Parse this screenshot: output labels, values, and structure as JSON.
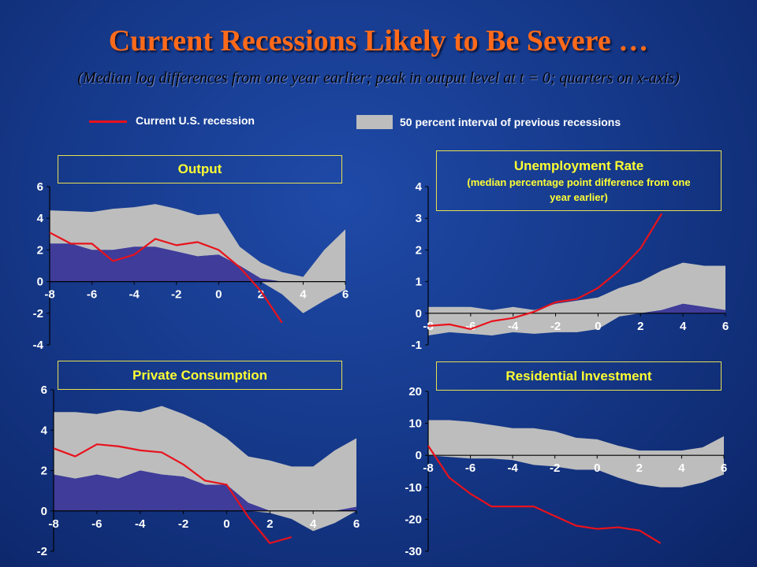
{
  "title": "Current Recessions Likely to Be Severe …",
  "subtitle": "(Median log differences from one year earlier; peak in output level at t = 0; quarters on x-axis)",
  "legend": {
    "line_label": "Current U.S. recession",
    "band_label": "50 percent interval of previous recessions"
  },
  "colors": {
    "background": "#163a8c",
    "title": "#ff6a1a",
    "band": "#bdbdbd",
    "lower_band": "#3f3c9a",
    "line": "#e8121c",
    "panel_label": "#ffff33"
  },
  "chart_data": [
    {
      "type": "area",
      "title": "Output",
      "xlim": [
        -8,
        6
      ],
      "ylim": [
        -4,
        6
      ],
      "xticks": [
        "-8",
        "-6",
        "-4",
        "-2",
        "0",
        "2",
        "4",
        "6"
      ],
      "yticks": [
        "-4",
        "-2",
        "0",
        "2",
        "4",
        "6"
      ],
      "band_x": [
        -8,
        -7,
        -6,
        -5,
        -4,
        -3,
        -2,
        -1,
        0,
        1,
        2,
        3,
        4,
        5,
        6
      ],
      "band_upper": [
        4.5,
        4.45,
        4.4,
        4.6,
        4.7,
        4.9,
        4.6,
        4.2,
        4.3,
        2.2,
        1.2,
        0.6,
        0.3,
        2.0,
        3.3
      ],
      "band_lower": [
        2.4,
        2.4,
        2.0,
        2.0,
        2.2,
        2.2,
        1.9,
        1.6,
        1.7,
        1.0,
        0.2,
        -0.8,
        -2.0,
        -1.2,
        -0.5
      ],
      "series": [
        {
          "name": "Current U.S. recession",
          "x": [
            -8,
            -7,
            -6,
            -5,
            -4,
            -3,
            -2,
            -1,
            0,
            1,
            2,
            3
          ],
          "values": [
            3.1,
            2.4,
            2.4,
            1.3,
            1.7,
            2.7,
            2.3,
            2.5,
            2.0,
            0.9,
            -0.6,
            -2.6
          ]
        }
      ]
    },
    {
      "type": "area",
      "title": "Unemployment Rate",
      "title_note": "(median percentage point difference from one year earlier)",
      "xlim": [
        -8,
        6
      ],
      "ylim": [
        -1,
        4
      ],
      "xticks": [
        "-8",
        "-6",
        "-4",
        "-2",
        "0",
        "2",
        "4",
        "6"
      ],
      "yticks": [
        "-1",
        "0",
        "1",
        "2",
        "3",
        "4"
      ],
      "band_x": [
        -8,
        -7,
        -6,
        -5,
        -4,
        -3,
        -2,
        -1,
        0,
        1,
        2,
        3,
        4,
        5,
        6
      ],
      "band_upper": [
        0.2,
        0.2,
        0.2,
        0.1,
        0.2,
        0.1,
        0.3,
        0.4,
        0.5,
        0.8,
        1.0,
        1.35,
        1.6,
        1.5,
        1.5
      ],
      "band_lower": [
        -0.7,
        -0.6,
        -0.65,
        -0.7,
        -0.6,
        -0.65,
        -0.6,
        -0.6,
        -0.5,
        -0.1,
        0.0,
        0.1,
        0.3,
        0.2,
        0.1
      ],
      "series": [
        {
          "name": "Current U.S. recession",
          "x": [
            -8,
            -7,
            -6,
            -5,
            -4,
            -3,
            -2,
            -1,
            0,
            1,
            2,
            3
          ],
          "values": [
            -0.4,
            -0.35,
            -0.5,
            -0.25,
            -0.15,
            0.05,
            0.35,
            0.45,
            0.8,
            1.35,
            2.05,
            3.15
          ]
        }
      ]
    },
    {
      "type": "area",
      "title": "Private Consumption",
      "xlim": [
        -8,
        6
      ],
      "ylim": [
        -2,
        6
      ],
      "xticks": [
        "-8",
        "-6",
        "-4",
        "-2",
        "0",
        "2",
        "4",
        "6"
      ],
      "yticks": [
        "-2",
        "0",
        "2",
        "4",
        "6"
      ],
      "band_x": [
        -8,
        -7,
        -6,
        -5,
        -4,
        -3,
        -2,
        -1,
        0,
        1,
        2,
        3,
        4,
        5,
        6
      ],
      "band_upper": [
        4.9,
        4.9,
        4.8,
        5.0,
        4.9,
        5.2,
        4.8,
        4.3,
        3.6,
        2.7,
        2.5,
        2.2,
        2.2,
        3.0,
        3.6
      ],
      "band_lower": [
        1.8,
        1.6,
        1.8,
        1.6,
        2.0,
        1.8,
        1.7,
        1.3,
        1.3,
        0.4,
        -0.1,
        -0.4,
        -1.0,
        -0.6,
        0.2
      ],
      "series": [
        {
          "name": "Current U.S. recession",
          "x": [
            -8,
            -7,
            -6,
            -5,
            -4,
            -3,
            -2,
            -1,
            0,
            1,
            2,
            3
          ],
          "values": [
            3.1,
            2.7,
            3.3,
            3.2,
            3.0,
            2.9,
            2.3,
            1.5,
            1.3,
            -0.3,
            -1.6,
            -1.3
          ]
        }
      ]
    },
    {
      "type": "area",
      "title": "Residential Investment",
      "xlim": [
        -8,
        6
      ],
      "ylim": [
        -30,
        20
      ],
      "xticks": [
        "-8",
        "-6",
        "-4",
        "-2",
        "0",
        "2",
        "4",
        "6"
      ],
      "yticks": [
        "-30",
        "-20",
        "-10",
        "0",
        "10",
        "20"
      ],
      "band_x": [
        -8,
        -7,
        -6,
        -5,
        -4,
        -3,
        -2,
        -1,
        0,
        1,
        2,
        3,
        4,
        5,
        6
      ],
      "band_upper": [
        11,
        11,
        10.5,
        9.5,
        8.5,
        8.5,
        7.5,
        5.5,
        5,
        3,
        1.5,
        1.5,
        1.5,
        2.5,
        6
      ],
      "band_lower": [
        0,
        -0.5,
        -1,
        -1,
        -1.5,
        -3,
        -3.5,
        -4.5,
        -4.5,
        -7,
        -9,
        -10,
        -10,
        -8.5,
        -6
      ],
      "series": [
        {
          "name": "Current U.S. recession",
          "x": [
            -8,
            -7,
            -6,
            -5,
            -4,
            -3,
            -2,
            -1,
            0,
            1,
            2,
            3
          ],
          "values": [
            3,
            -7,
            -12,
            -16,
            -16,
            -16,
            -19,
            -22,
            -23,
            -22.5,
            -23.5,
            -27.5
          ]
        }
      ]
    }
  ]
}
